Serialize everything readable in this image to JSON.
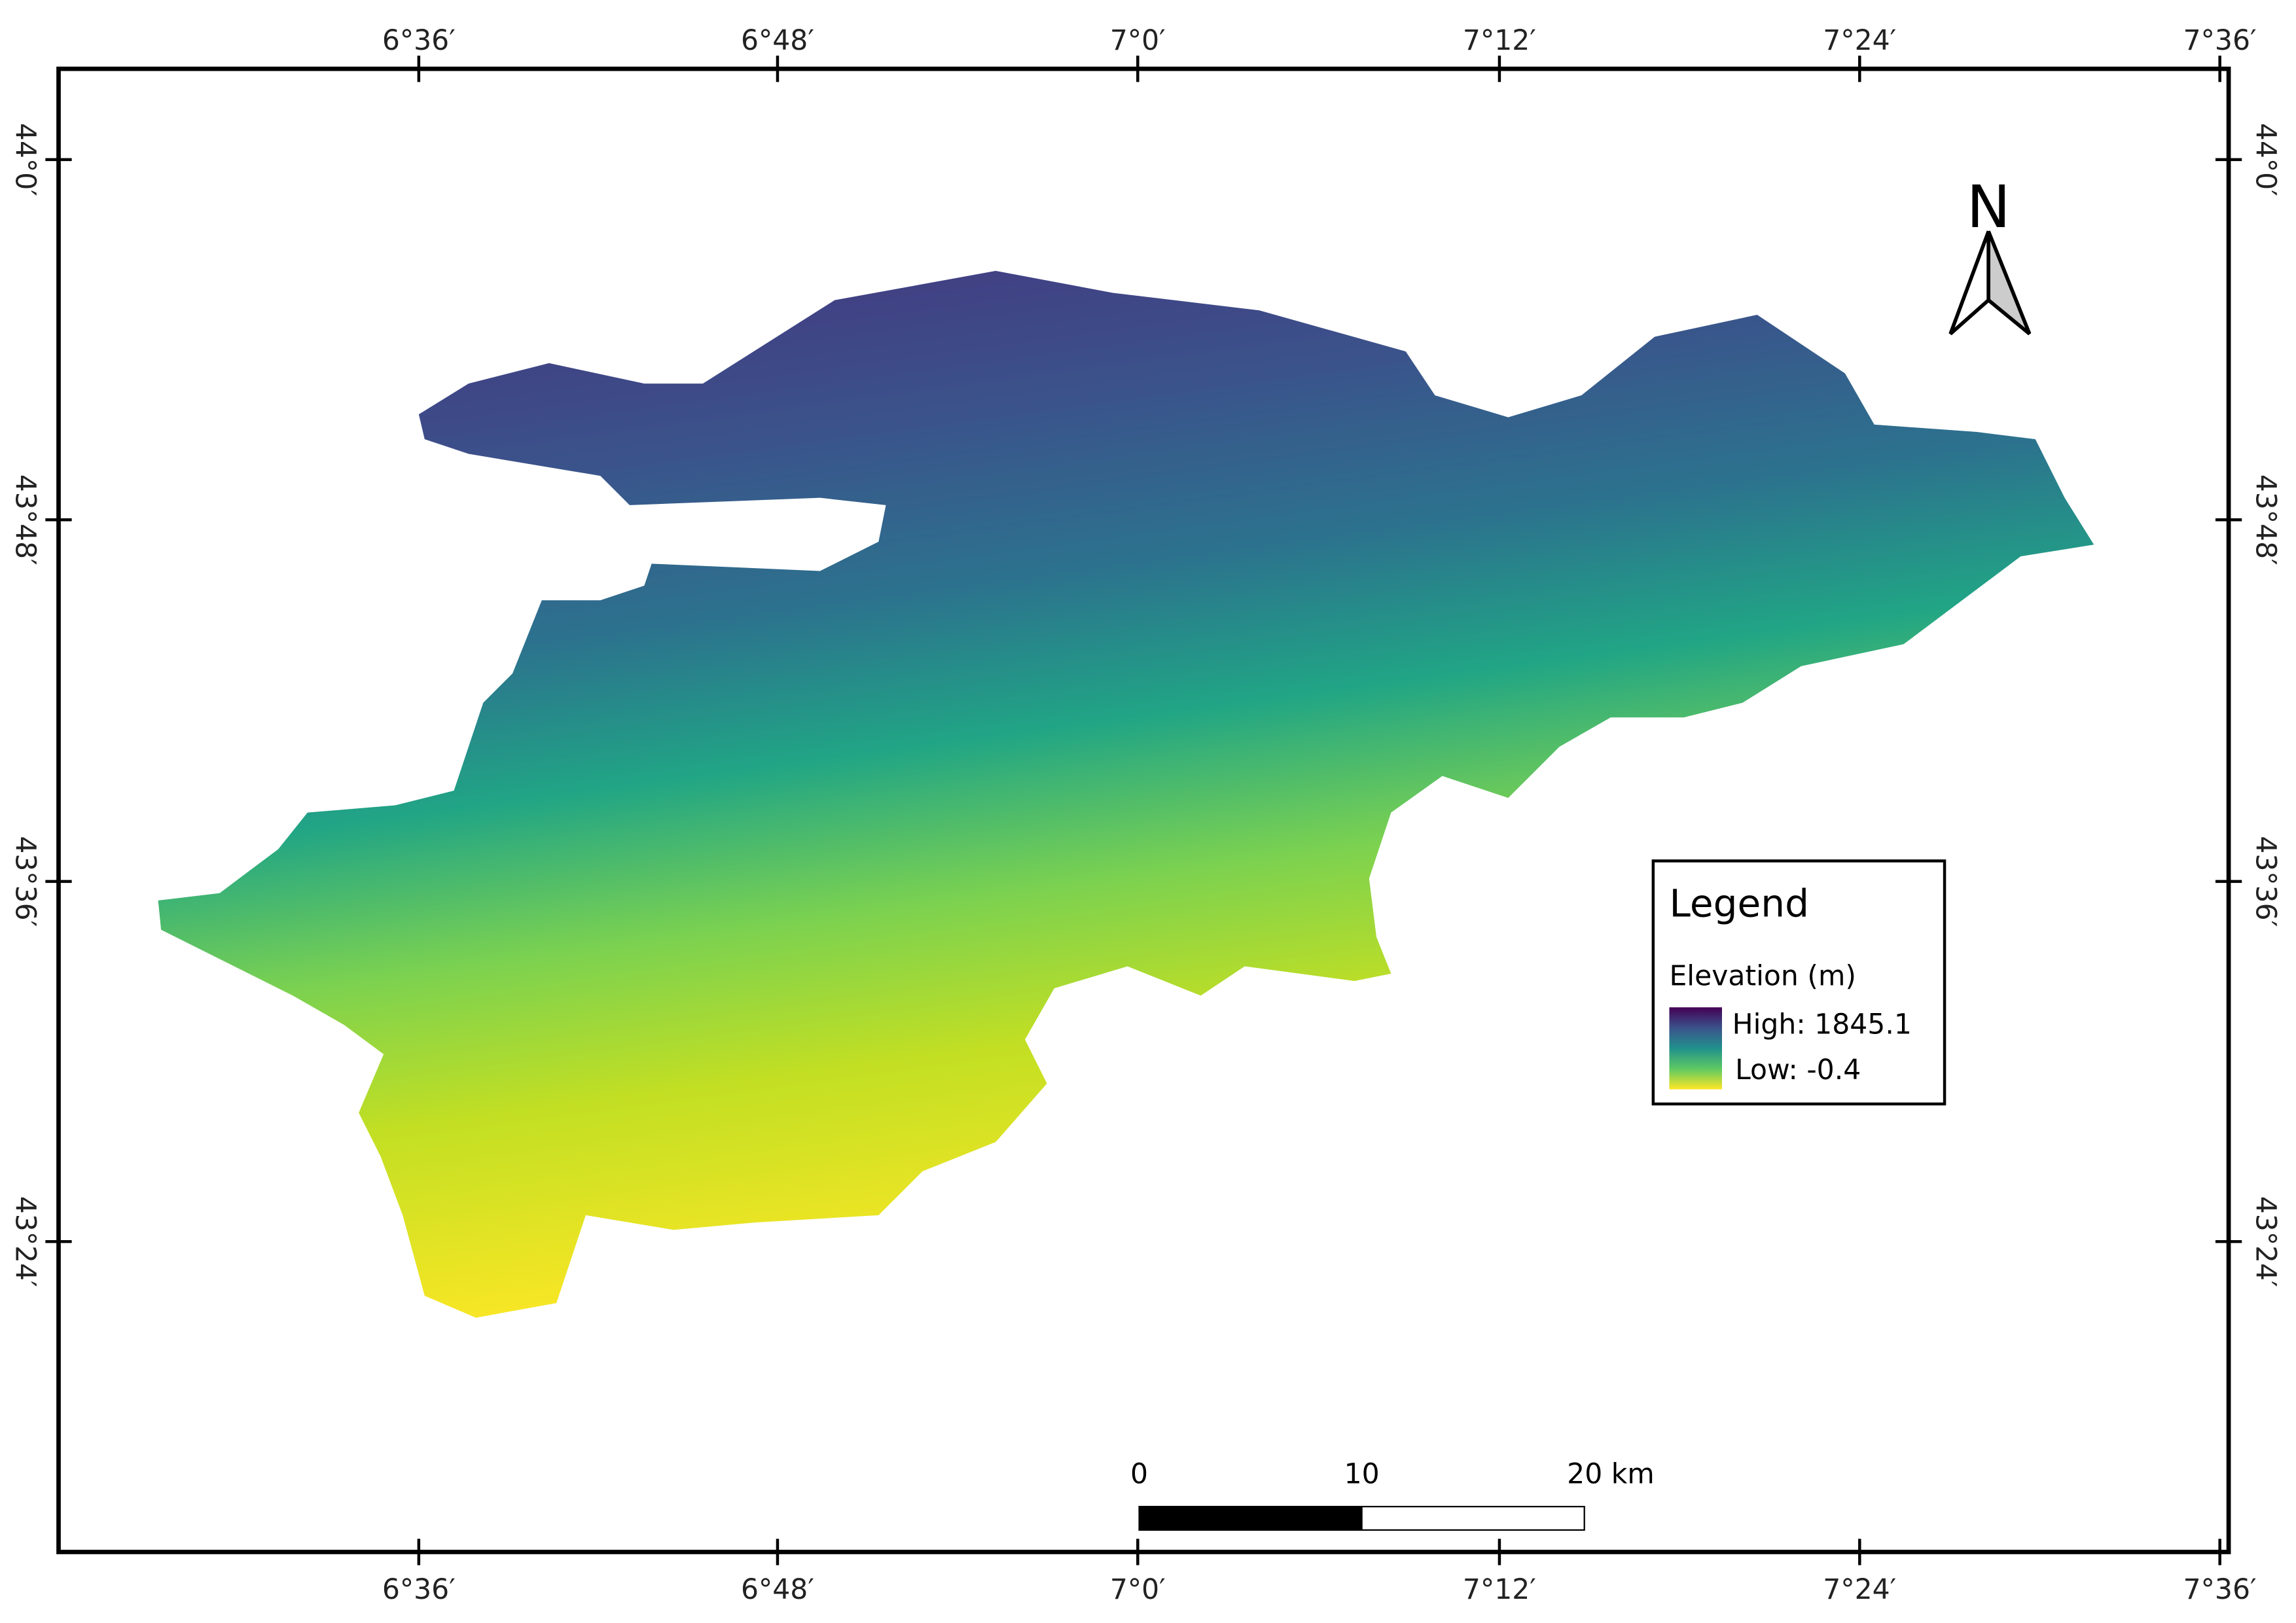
{
  "map": {
    "lon_ticks": [
      "6°36′",
      "6°48′",
      "7°0′",
      "7°12′",
      "7°24′",
      "7°36′"
    ],
    "lat_ticks": [
      "44°0′",
      "43°48′",
      "43°36′",
      "43°24′"
    ],
    "north_arrow": "N",
    "legend": {
      "title": "Legend",
      "layer": "Elevation (m)",
      "high": "High: 1845.1",
      "low": "Low: -0.4"
    },
    "scale_bar": [
      "0",
      "10",
      "20 km"
    ]
  }
}
